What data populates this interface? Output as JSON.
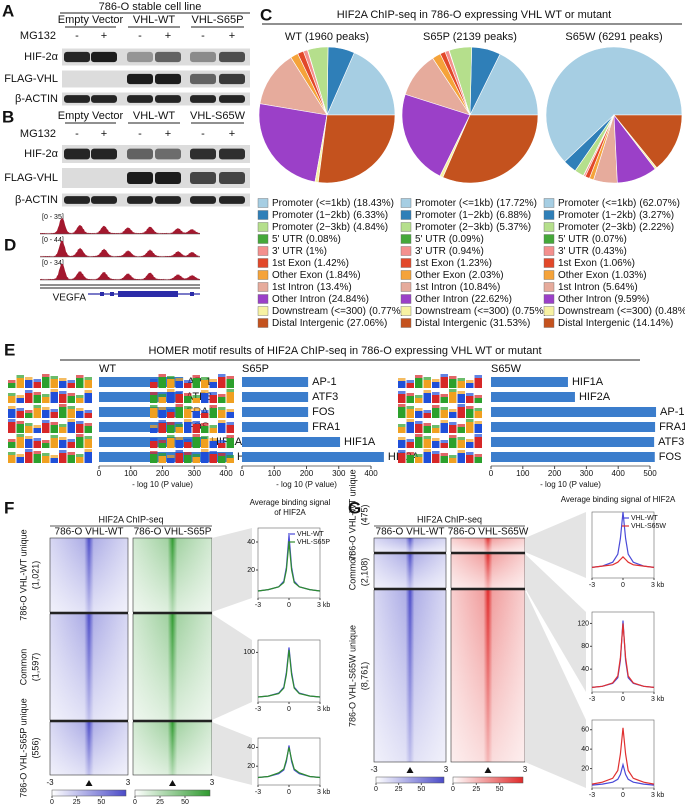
{
  "panel_a": {
    "letter": "A",
    "title": "786-O stable cell line",
    "groups": [
      "Empty Vector",
      "VHL-WT",
      "VHL-S65P"
    ],
    "treatment": "MG132",
    "lanes": [
      "-",
      "+",
      "-",
      "+",
      "-",
      "+"
    ],
    "rows": [
      "HIF-2α",
      "FLAG-VHL",
      "β-ACTIN"
    ]
  },
  "panel_b": {
    "letter": "B",
    "groups": [
      "Empty Vector",
      "VHL-WT",
      "VHL-S65W"
    ],
    "treatment": "MG132",
    "lanes": [
      "-",
      "+",
      "-",
      "+",
      "-",
      "+"
    ],
    "rows": [
      "HIF-2α",
      "FLAG-VHL",
      "β-ACTIN"
    ]
  },
  "panel_c": {
    "letter": "C",
    "title": "HIF2A ChIP-seq in 786-O expressing VHL WT or mutant",
    "categories": [
      "Promoter (<=1kb)",
      "Promoter (1−2kb)",
      "Promoter (2−3kb)",
      "5' UTR",
      "3' UTR",
      "1st Exon",
      "Other Exon",
      "1st Intron",
      "Other Intron",
      "Downstream (<=300)",
      "Distal Intergenic"
    ],
    "colors": [
      "#a6cee3",
      "#2f7fb8",
      "#b5df8c",
      "#45a83a",
      "#f4908e",
      "#e2482a",
      "#f5a33a",
      "#e6ab9c",
      "#9b40c8",
      "#f7f2a2",
      "#c4521e"
    ],
    "charts": [
      {
        "type": "pie",
        "title": "WT (1960 peaks)",
        "values": [
          18.43,
          6.33,
          4.84,
          0.08,
          1,
          1.42,
          1.84,
          13.4,
          24.84,
          0.77,
          27.06
        ],
        "value_labels": [
          "(18.43%)",
          "(6.33%)",
          "(4.84%)",
          "(0.08%)",
          "(1%)",
          "(1.42%)",
          "(1.84%)",
          "(13.4%)",
          "(24.84%)",
          "(0.77%)",
          "(27.06%)"
        ]
      },
      {
        "type": "pie",
        "title": "S65P (2139 peaks)",
        "values": [
          17.72,
          6.88,
          5.37,
          0.09,
          0.94,
          1.23,
          2.03,
          10.84,
          22.62,
          0.75,
          31.53
        ],
        "value_labels": [
          "(17.72%)",
          "(6.88%)",
          "(5.37%)",
          "(0.09%)",
          "(0.94%)",
          "(1.23%)",
          "(2.03%)",
          "(10.84%)",
          "(22.62%)",
          "(0.75%)",
          "(31.53%)"
        ]
      },
      {
        "type": "pie",
        "title": "S65W (6291 peaks)",
        "values": [
          62.07,
          3.27,
          2.22,
          0.07,
          0.43,
          1.06,
          1.03,
          5.64,
          9.59,
          0.48,
          14.14
        ],
        "value_labels": [
          "(62.07%)",
          "(3.27%)",
          "(2.22%)",
          "(0.07%)",
          "(0.43%)",
          "(1.06%)",
          "(1.03%)",
          "(5.64%)",
          "(9.59%)",
          "(0.48%)",
          "(14.14%)"
        ]
      }
    ]
  },
  "panel_d": {
    "letter": "D",
    "tracks": [
      "[0 - 35]",
      "[0 - 44]",
      "[0 - 34]"
    ],
    "gene": "VEGFA"
  },
  "panel_e": {
    "letter": "E",
    "title": "HOMER motif results of HIF2A ChIP-seq in 786-O expressing VHL WT or mutant",
    "xlabel": "- log 10 (P value)",
    "color": "#3b7dcc",
    "charts": [
      {
        "type": "bar",
        "title": "WT",
        "categories": [
          "AP-1",
          "ATF3",
          "FRA1",
          "FOS",
          "HIF1A",
          "HIF2A"
        ],
        "values": [
          265,
          261,
          263,
          263,
          340,
          422
        ],
        "xlim": [
          0,
          400
        ],
        "xticks": [
          0,
          100,
          200,
          300,
          400
        ]
      },
      {
        "type": "bar",
        "title": "S65P",
        "categories": [
          "AP-1",
          "ATF3",
          "FOS",
          "FRA1",
          "HIF1A",
          "HIF2A"
        ],
        "values": [
          205,
          205,
          205,
          205,
          304,
          440
        ],
        "xlim": [
          0,
          400
        ],
        "xticks": [
          0,
          100,
          200,
          300,
          400
        ]
      },
      {
        "type": "bar",
        "title": "S65W",
        "categories": [
          "HIF1A",
          "HIF2A",
          "AP-1",
          "FRA1",
          "ATF3",
          "FOS"
        ],
        "values": [
          242,
          264,
          519,
          516,
          513,
          515
        ],
        "xlim": [
          0,
          500
        ],
        "xticks": [
          0,
          100,
          200,
          300,
          400,
          500
        ]
      }
    ]
  },
  "panel_f": {
    "letter": "F",
    "title": "HIF2A ChIP-seq",
    "samples": [
      "786-O VHL-WT",
      "786-O VHL-S65P"
    ],
    "sample_colors": [
      "#4b4bc8",
      "#2f9a2f"
    ],
    "groups": [
      {
        "name": "786-O VHL-WT unique",
        "count": "(1,021)"
      },
      {
        "name": "Common",
        "count": "(1,597)"
      },
      {
        "name": "786-O VHL-S65P unique",
        "count": "(556)"
      }
    ],
    "heatmap_xticks": [
      -3,
      3
    ],
    "colorbar_lim": [
      0,
      75
    ],
    "colorbar_ticks": [
      0,
      25,
      50
    ],
    "profile_title": [
      "Average binding signal",
      "of HIF2A"
    ],
    "series_names": [
      "VHL-WT",
      "VHL-S65P"
    ],
    "series_colors": [
      "#4a4ad8",
      "#2e8b2e"
    ],
    "profiles": [
      {
        "type": "line",
        "x": [
          -3,
          -2,
          -1,
          -0.5,
          -0.25,
          0,
          0.25,
          0.5,
          1,
          2,
          3
        ],
        "xlim": [
          -3,
          3
        ],
        "xticks": [
          -3,
          0,
          {
            "value": 3,
            "label": "3 kb"
          }
        ],
        "ylim": [
          0,
          50
        ],
        "yticks": [
          20,
          40
        ],
        "series": [
          {
            "values": [
              5,
              6,
              8,
              12,
              22,
              45,
              22,
              12,
              8,
              6,
              5
            ]
          },
          {
            "values": [
              5,
              6,
              8,
              11,
              20,
              40,
              20,
              11,
              8,
              6,
              5
            ]
          }
        ]
      },
      {
        "type": "line",
        "x": [
          -3,
          -2,
          -1,
          -0.5,
          -0.25,
          0,
          0.25,
          0.5,
          1,
          2,
          3
        ],
        "xlim": [
          -3,
          3
        ],
        "xticks": [
          -3,
          0,
          {
            "value": 3,
            "label": "3 kb"
          }
        ],
        "ylim": [
          0,
          125
        ],
        "yticks": [
          100
        ],
        "series": [
          {
            "values": [
              10,
              12,
              18,
              30,
              60,
              110,
              60,
              30,
              18,
              12,
              10
            ]
          },
          {
            "values": [
              10,
              12,
              17,
              28,
              55,
              105,
              55,
              28,
              17,
              12,
              10
            ]
          }
        ]
      },
      {
        "type": "line",
        "x": [
          -3,
          -2,
          -1,
          -0.5,
          -0.25,
          0,
          0.25,
          0.5,
          1,
          2,
          3
        ],
        "xlim": [
          -3,
          3
        ],
        "xticks": [
          -3,
          0,
          {
            "value": 3,
            "label": "3 kb"
          }
        ],
        "ylim": [
          0,
          50
        ],
        "yticks": [
          20,
          40
        ],
        "series": [
          {
            "values": [
              8,
              9,
              12,
              16,
              25,
              42,
              25,
              16,
              12,
              9,
              8
            ]
          },
          {
            "values": [
              8,
              9,
              13,
              17,
              27,
              40,
              27,
              17,
              13,
              9,
              8
            ]
          }
        ]
      }
    ]
  },
  "panel_g": {
    "letter": "G",
    "title": "HIF2A ChIP-seq",
    "samples": [
      "786-O VHL-WT",
      "786-O VHL-S65W"
    ],
    "sample_colors": [
      "#4b4bc8",
      "#e02a2a"
    ],
    "groups": [
      {
        "name": "786-O VHL-WT unique",
        "count": "(475)"
      },
      {
        "name": "Common",
        "count": "(2,108)"
      },
      {
        "name": "786-O VHL-S65W unique",
        "count": "(8,761)"
      }
    ],
    "heatmap_xticks": [
      -3,
      3
    ],
    "colorbar_lim": [
      0,
      75
    ],
    "colorbar_ticks": [
      0,
      25,
      50
    ],
    "profile_title": [
      "Average binding signal of HIF2A"
    ],
    "series_names": [
      "VHL-WT",
      "VHL-S65W"
    ],
    "series_colors": [
      "#4a4ad8",
      "#e03030"
    ],
    "profiles": [
      {
        "type": "line",
        "x": [
          -3,
          -2,
          -1,
          -0.5,
          -0.25,
          0,
          0.25,
          0.5,
          1,
          2,
          3
        ],
        "xlim": [
          -3,
          3
        ],
        "xticks": [
          -3,
          0,
          {
            "value": 3,
            "label": "3 kb"
          }
        ],
        "ylim": [
          0,
          50
        ],
        "series": [
          {
            "values": [
              8,
              9,
              12,
              18,
              30,
              50,
              30,
              18,
              12,
              9,
              8
            ]
          },
          {
            "values": [
              8,
              9,
              10,
              12,
              14,
              16,
              14,
              12,
              10,
              9,
              8
            ]
          }
        ]
      },
      {
        "type": "line",
        "x": [
          -3,
          -2,
          -1,
          -0.5,
          -0.25,
          0,
          0.25,
          0.5,
          1,
          2,
          3
        ],
        "xlim": [
          -3,
          3
        ],
        "xticks": [
          -3,
          0,
          {
            "value": 3,
            "label": "3 kb"
          }
        ],
        "ylim": [
          0,
          140
        ],
        "yticks": [
          40,
          80,
          120
        ],
        "series": [
          {
            "values": [
              8,
              10,
              15,
              25,
              55,
              125,
              55,
              25,
              15,
              10,
              8
            ]
          },
          {
            "values": [
              8,
              10,
              16,
              28,
              60,
              120,
              60,
              28,
              16,
              10,
              8
            ]
          }
        ]
      },
      {
        "type": "line",
        "x": [
          -3,
          -2,
          -1,
          -0.5,
          -0.25,
          0,
          0.25,
          0.5,
          1,
          2,
          3
        ],
        "xlim": [
          -3,
          3
        ],
        "xticks": [
          -3,
          0,
          {
            "value": 3,
            "label": "3 kb"
          }
        ],
        "ylim": [
          0,
          70
        ],
        "yticks": [
          20,
          40,
          60
        ],
        "series": [
          {
            "values": [
              3,
              4,
              6,
              9,
              14,
              24,
              14,
              9,
              6,
              4,
              3
            ]
          },
          {
            "values": [
              4,
              6,
              10,
              18,
              35,
              62,
              35,
              18,
              10,
              6,
              4
            ]
          }
        ]
      }
    ]
  }
}
